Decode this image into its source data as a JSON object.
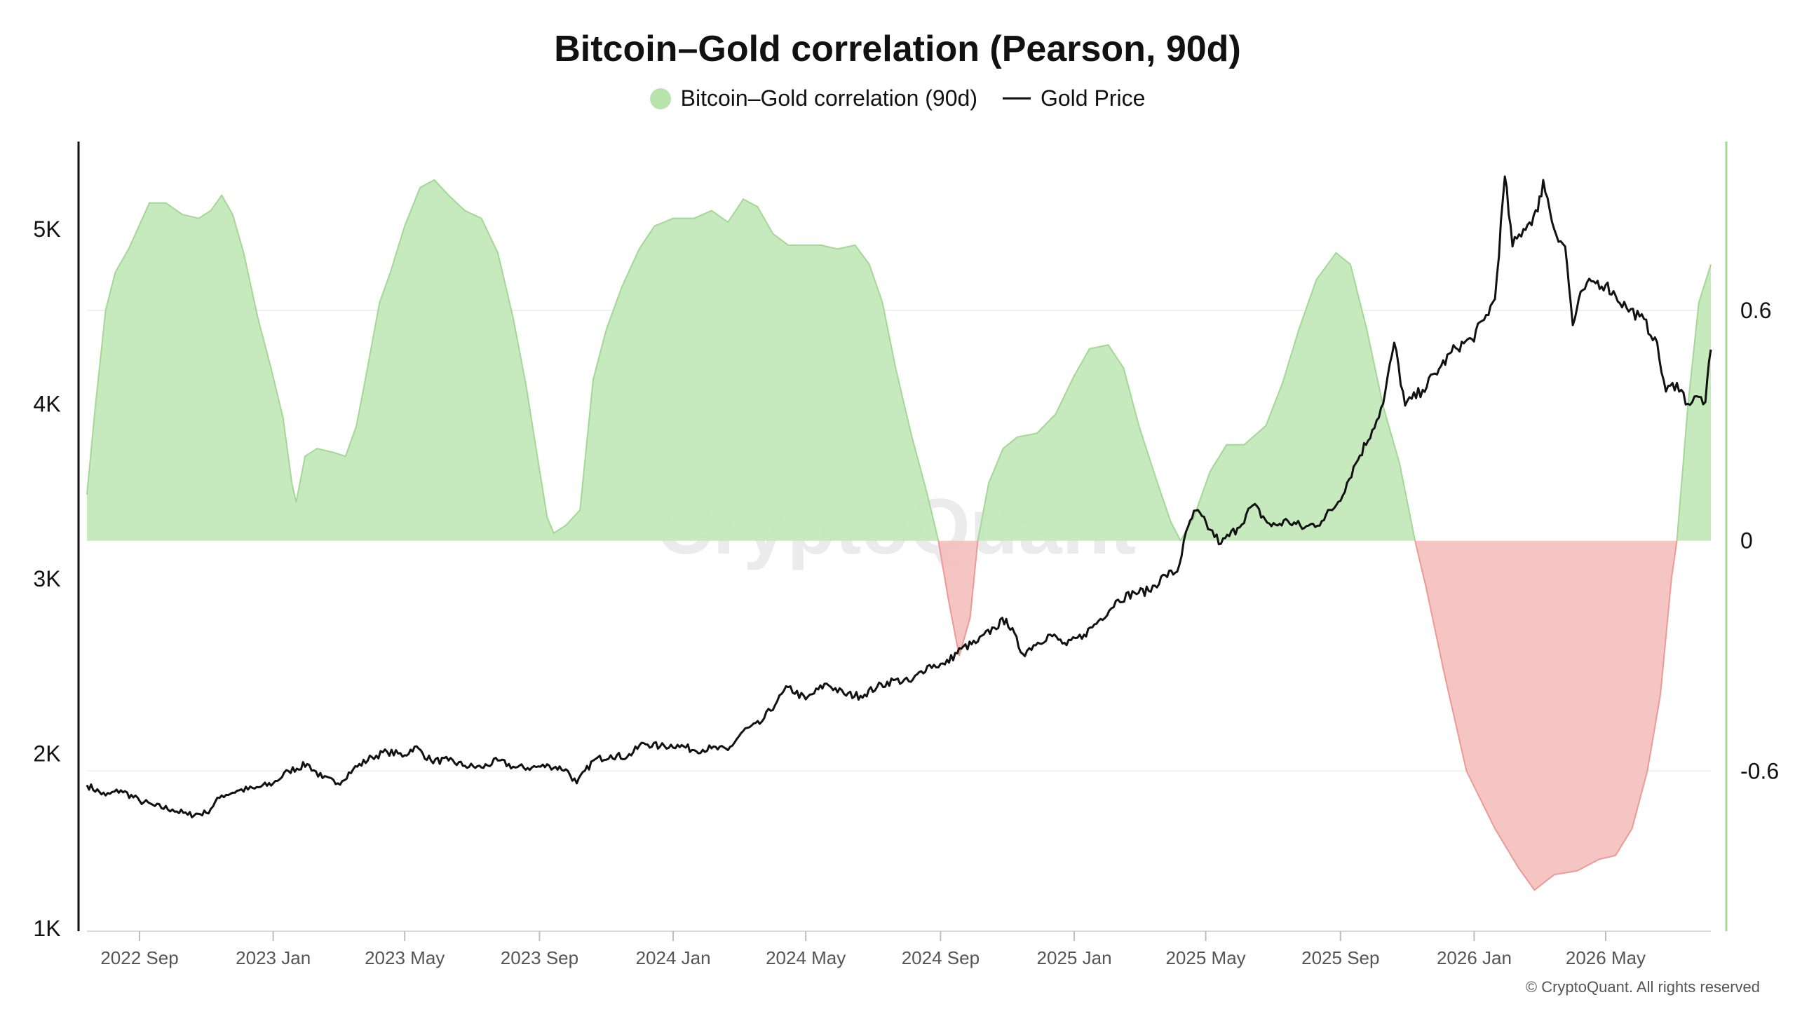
{
  "chart_data": {
    "type": "area",
    "title": "Bitcoin–Gold correlation (Pearson, 90d)",
    "legend": {
      "placement": "top-center"
    },
    "series": [
      {
        "name": "Bitcoin–Gold correlation (90d)",
        "type": "area",
        "axis": "right",
        "color_positive": "#c3e9b9",
        "color_negative": "#f4c2c0",
        "stroke_positive": "#a3d896",
        "stroke_negative": "#ec9a95",
        "points": [
          [
            "2022-07-15",
            0.12
          ],
          [
            "2022-07-22",
            0.33
          ],
          [
            "2022-08-01",
            0.6
          ],
          [
            "2022-08-10",
            0.7
          ],
          [
            "2022-08-22",
            0.76
          ],
          [
            "2022-09-10",
            0.88
          ],
          [
            "2022-09-25",
            0.88
          ],
          [
            "2022-10-10",
            0.85
          ],
          [
            "2022-10-25",
            0.84
          ],
          [
            "2022-11-05",
            0.86
          ],
          [
            "2022-11-15",
            0.9
          ],
          [
            "2022-11-25",
            0.85
          ],
          [
            "2022-12-05",
            0.75
          ],
          [
            "2022-12-18",
            0.58
          ],
          [
            "2022-12-30",
            0.45
          ],
          [
            "2023-01-10",
            0.32
          ],
          [
            "2023-01-18",
            0.15
          ],
          [
            "2023-01-22",
            0.1
          ],
          [
            "2023-01-30",
            0.22
          ],
          [
            "2023-02-10",
            0.24
          ],
          [
            "2023-02-25",
            0.23
          ],
          [
            "2023-03-08",
            0.22
          ],
          [
            "2023-03-18",
            0.3
          ],
          [
            "2023-03-28",
            0.45
          ],
          [
            "2023-04-08",
            0.62
          ],
          [
            "2023-04-18",
            0.7
          ],
          [
            "2023-05-01",
            0.82
          ],
          [
            "2023-05-15",
            0.92
          ],
          [
            "2023-05-28",
            0.94
          ],
          [
            "2023-06-10",
            0.9
          ],
          [
            "2023-06-25",
            0.86
          ],
          [
            "2023-07-10",
            0.84
          ],
          [
            "2023-07-25",
            0.75
          ],
          [
            "2023-08-08",
            0.58
          ],
          [
            "2023-08-20",
            0.4
          ],
          [
            "2023-08-30",
            0.22
          ],
          [
            "2023-09-08",
            0.06
          ],
          [
            "2023-09-14",
            0.02
          ],
          [
            "2023-09-25",
            0.04
          ],
          [
            "2023-10-08",
            0.08
          ],
          [
            "2023-10-20",
            0.42
          ],
          [
            "2023-11-01",
            0.55
          ],
          [
            "2023-11-15",
            0.66
          ],
          [
            "2023-12-01",
            0.76
          ],
          [
            "2023-12-15",
            0.82
          ],
          [
            "2024-01-01",
            0.84
          ],
          [
            "2024-01-20",
            0.84
          ],
          [
            "2024-02-05",
            0.86
          ],
          [
            "2024-02-20",
            0.83
          ],
          [
            "2024-03-05",
            0.89
          ],
          [
            "2024-03-18",
            0.87
          ],
          [
            "2024-04-01",
            0.8
          ],
          [
            "2024-04-15",
            0.77
          ],
          [
            "2024-05-01",
            0.77
          ],
          [
            "2024-05-15",
            0.77
          ],
          [
            "2024-05-30",
            0.76
          ],
          [
            "2024-06-15",
            0.77
          ],
          [
            "2024-06-28",
            0.72
          ],
          [
            "2024-07-10",
            0.62
          ],
          [
            "2024-07-22",
            0.45
          ],
          [
            "2024-08-05",
            0.28
          ],
          [
            "2024-08-20",
            0.12
          ],
          [
            "2024-08-30",
            0.0
          ],
          [
            "2024-09-08",
            -0.15
          ],
          [
            "2024-09-18",
            -0.3
          ],
          [
            "2024-09-28",
            -0.2
          ],
          [
            "2024-10-05",
            0.0
          ],
          [
            "2024-10-15",
            0.15
          ],
          [
            "2024-10-28",
            0.24
          ],
          [
            "2024-11-10",
            0.27
          ],
          [
            "2024-11-28",
            0.28
          ],
          [
            "2024-12-15",
            0.33
          ],
          [
            "2025-01-01",
            0.43
          ],
          [
            "2025-01-15",
            0.5
          ],
          [
            "2025-02-01",
            0.51
          ],
          [
            "2025-02-15",
            0.45
          ],
          [
            "2025-03-01",
            0.3
          ],
          [
            "2025-03-18",
            0.15
          ],
          [
            "2025-03-30",
            0.05
          ],
          [
            "2025-04-08",
            0.0
          ],
          [
            "2025-04-20",
            0.06
          ],
          [
            "2025-05-05",
            0.18
          ],
          [
            "2025-05-20",
            0.25
          ],
          [
            "2025-06-05",
            0.25
          ],
          [
            "2025-06-25",
            0.3
          ],
          [
            "2025-07-10",
            0.41
          ],
          [
            "2025-07-25",
            0.55
          ],
          [
            "2025-08-10",
            0.68
          ],
          [
            "2025-08-28",
            0.75
          ],
          [
            "2025-09-10",
            0.72
          ],
          [
            "2025-09-25",
            0.55
          ],
          [
            "2025-10-10",
            0.35
          ],
          [
            "2025-10-25",
            0.2
          ],
          [
            "2025-11-08",
            0.0
          ],
          [
            "2025-11-18",
            -0.12
          ],
          [
            "2025-12-05",
            -0.35
          ],
          [
            "2025-12-25",
            -0.6
          ],
          [
            "2026-01-20",
            -0.75
          ],
          [
            "2026-02-10",
            -0.85
          ],
          [
            "2026-02-25",
            -0.91
          ],
          [
            "2026-03-15",
            -0.87
          ],
          [
            "2026-04-05",
            -0.86
          ],
          [
            "2026-04-25",
            -0.83
          ],
          [
            "2026-05-10",
            -0.82
          ],
          [
            "2026-05-25",
            -0.75
          ],
          [
            "2026-06-08",
            -0.6
          ],
          [
            "2026-06-20",
            -0.4
          ],
          [
            "2026-06-30",
            -0.1
          ],
          [
            "2026-07-05",
            0.0
          ],
          [
            "2026-07-15",
            0.35
          ],
          [
            "2026-07-25",
            0.62
          ],
          [
            "2026-08-05",
            0.72
          ]
        ]
      },
      {
        "name": "Gold Price",
        "type": "line",
        "axis": "left",
        "color": "#111111",
        "points": [
          [
            "2022-07-15",
            1820
          ],
          [
            "2022-08-01",
            1760
          ],
          [
            "2022-08-15",
            1790
          ],
          [
            "2022-09-01",
            1730
          ],
          [
            "2022-09-15",
            1700
          ],
          [
            "2022-10-01",
            1680
          ],
          [
            "2022-10-15",
            1650
          ],
          [
            "2022-11-01",
            1660
          ],
          [
            "2022-11-15",
            1760
          ],
          [
            "2022-12-01",
            1790
          ],
          [
            "2022-12-15",
            1800
          ],
          [
            "2023-01-01",
            1830
          ],
          [
            "2023-01-15",
            1900
          ],
          [
            "2023-02-01",
            1940
          ],
          [
            "2023-02-15",
            1860
          ],
          [
            "2023-03-01",
            1830
          ],
          [
            "2023-03-15",
            1910
          ],
          [
            "2023-04-01",
            1980
          ],
          [
            "2023-04-15",
            2010
          ],
          [
            "2023-05-01",
            1990
          ],
          [
            "2023-05-10",
            2040
          ],
          [
            "2023-05-25",
            1960
          ],
          [
            "2023-06-10",
            1960
          ],
          [
            "2023-06-25",
            1930
          ],
          [
            "2023-07-10",
            1920
          ],
          [
            "2023-07-25",
            1960
          ],
          [
            "2023-08-10",
            1920
          ],
          [
            "2023-08-25",
            1920
          ],
          [
            "2023-09-10",
            1930
          ],
          [
            "2023-09-25",
            1910
          ],
          [
            "2023-10-05",
            1830
          ],
          [
            "2023-10-20",
            1960
          ],
          [
            "2023-11-05",
            1990
          ],
          [
            "2023-11-20",
            1980
          ],
          [
            "2023-12-05",
            2060
          ],
          [
            "2023-12-20",
            2040
          ],
          [
            "2024-01-05",
            2050
          ],
          [
            "2024-01-20",
            2020
          ],
          [
            "2024-02-05",
            2030
          ],
          [
            "2024-02-20",
            2020
          ],
          [
            "2024-03-05",
            2130
          ],
          [
            "2024-03-20",
            2170
          ],
          [
            "2024-04-05",
            2300
          ],
          [
            "2024-04-15",
            2380
          ],
          [
            "2024-05-01",
            2310
          ],
          [
            "2024-05-20",
            2400
          ],
          [
            "2024-06-05",
            2340
          ],
          [
            "2024-06-20",
            2330
          ],
          [
            "2024-07-05",
            2380
          ],
          [
            "2024-07-20",
            2420
          ],
          [
            "2024-08-05",
            2410
          ],
          [
            "2024-08-20",
            2500
          ],
          [
            "2024-09-05",
            2510
          ],
          [
            "2024-09-20",
            2600
          ],
          [
            "2024-10-05",
            2640
          ],
          [
            "2024-10-20",
            2720
          ],
          [
            "2024-10-31",
            2770
          ],
          [
            "2024-11-15",
            2570
          ],
          [
            "2024-11-25",
            2620
          ],
          [
            "2024-12-10",
            2680
          ],
          [
            "2024-12-25",
            2620
          ],
          [
            "2025-01-10",
            2680
          ],
          [
            "2025-01-25",
            2770
          ],
          [
            "2025-02-10",
            2880
          ],
          [
            "2025-02-25",
            2920
          ],
          [
            "2025-03-10",
            2930
          ],
          [
            "2025-03-25",
            3020
          ],
          [
            "2025-04-05",
            3040
          ],
          [
            "2025-04-15",
            3300
          ],
          [
            "2025-04-22",
            3390
          ],
          [
            "2025-05-05",
            3280
          ],
          [
            "2025-05-15",
            3200
          ],
          [
            "2025-05-30",
            3290
          ],
          [
            "2025-06-13",
            3420
          ],
          [
            "2025-06-30",
            3300
          ],
          [
            "2025-07-15",
            3330
          ],
          [
            "2025-07-30",
            3290
          ],
          [
            "2025-08-15",
            3330
          ],
          [
            "2025-08-30",
            3440
          ],
          [
            "2025-09-15",
            3660
          ],
          [
            "2025-09-30",
            3850
          ],
          [
            "2025-10-10",
            4000
          ],
          [
            "2025-10-20",
            4350
          ],
          [
            "2025-10-30",
            3990
          ],
          [
            "2025-11-15",
            4080
          ],
          [
            "2025-11-30",
            4200
          ],
          [
            "2025-12-15",
            4320
          ],
          [
            "2025-12-30",
            4370
          ],
          [
            "2026-01-10",
            4480
          ],
          [
            "2026-01-20",
            4600
          ],
          [
            "2026-01-29",
            5300
          ],
          [
            "2026-02-05",
            4900
          ],
          [
            "2026-02-15",
            5000
          ],
          [
            "2026-02-28",
            5100
          ],
          [
            "2026-03-05",
            5280
          ],
          [
            "2026-03-15",
            5000
          ],
          [
            "2026-03-25",
            4900
          ],
          [
            "2026-04-01",
            4450
          ],
          [
            "2026-04-10",
            4650
          ],
          [
            "2026-04-20",
            4700
          ],
          [
            "2026-05-01",
            4680
          ],
          [
            "2026-05-10",
            4620
          ],
          [
            "2026-05-20",
            4550
          ],
          [
            "2026-06-01",
            4500
          ],
          [
            "2026-06-15",
            4380
          ],
          [
            "2026-06-25",
            4070
          ],
          [
            "2026-07-05",
            4120
          ],
          [
            "2026-07-15",
            4000
          ],
          [
            "2026-07-25",
            4040
          ],
          [
            "2026-07-31",
            4010
          ],
          [
            "2026-08-05",
            4310
          ]
        ]
      }
    ],
    "x_axis": {
      "type": "date",
      "range": [
        "2022-07-15",
        "2026-08-05"
      ],
      "ticks": [
        {
          "date": "2022-09-01",
          "label": "2022 Sep"
        },
        {
          "date": "2023-01-01",
          "label": "2023 Jan"
        },
        {
          "date": "2023-05-01",
          "label": "2023 May"
        },
        {
          "date": "2023-09-01",
          "label": "2023 Sep"
        },
        {
          "date": "2024-01-01",
          "label": "2024 Jan"
        },
        {
          "date": "2024-05-01",
          "label": "2024 May"
        },
        {
          "date": "2024-09-01",
          "label": "2024 Sep"
        },
        {
          "date": "2025-01-01",
          "label": "2025 Jan"
        },
        {
          "date": "2025-05-01",
          "label": "2025 May"
        },
        {
          "date": "2025-09-01",
          "label": "2025 Sep"
        },
        {
          "date": "2026-01-01",
          "label": "2026 Jan"
        },
        {
          "date": "2026-05-01",
          "label": "2026 May"
        }
      ]
    },
    "y_axis_left": {
      "range": [
        1000,
        5500
      ],
      "ticks": [
        {
          "value": 1000,
          "label": "1K"
        },
        {
          "value": 2000,
          "label": "2K"
        },
        {
          "value": 3000,
          "label": "3K"
        },
        {
          "value": 4000,
          "label": "4K"
        },
        {
          "value": 5000,
          "label": "5K"
        }
      ]
    },
    "y_axis_right": {
      "range": [
        -1.01,
        1.04
      ],
      "ticks": [
        {
          "value": 0.6,
          "label": "0.6"
        },
        {
          "value": 0,
          "label": "0"
        },
        {
          "value": -0.6,
          "label": "-0.6"
        }
      ]
    },
    "grid": {
      "horizontal": true,
      "vertical": false
    }
  },
  "legend_items": {
    "correlation": "Bitcoin–Gold correlation (90d)",
    "gold": "Gold Price"
  },
  "watermark": "CryptoQuant",
  "copyright": "© CryptoQuant. All rights reserved"
}
